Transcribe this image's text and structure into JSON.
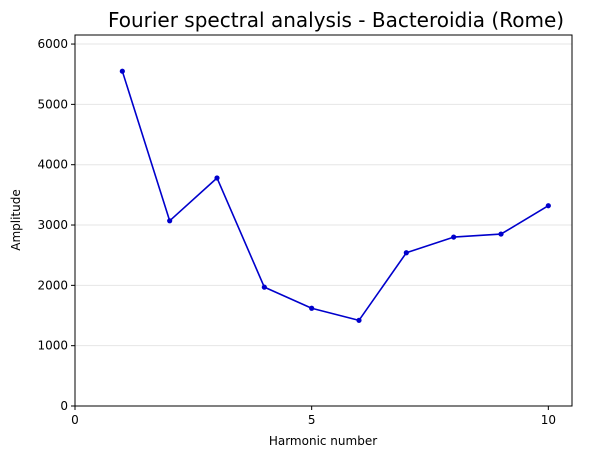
{
  "chart_data": {
    "type": "line",
    "title": "Fourier spectral analysis - Bacteroidia (Rome)",
    "xlabel": "Harmonic number",
    "ylabel": "Amplitude",
    "xlim": [
      0,
      10.5
    ],
    "ylim": [
      0,
      6150
    ],
    "xticks": [
      0,
      5,
      10
    ],
    "yticks": [
      0,
      1000,
      2000,
      3000,
      4000,
      5000,
      6000
    ],
    "grid": "horizontal",
    "series": [
      {
        "color": "#0000cc",
        "x": [
          1,
          2,
          3,
          4,
          5,
          6,
          7,
          8,
          9,
          10
        ],
        "y": [
          5550,
          3070,
          3780,
          1970,
          1620,
          1420,
          2540,
          2800,
          2850,
          3320
        ]
      }
    ]
  }
}
